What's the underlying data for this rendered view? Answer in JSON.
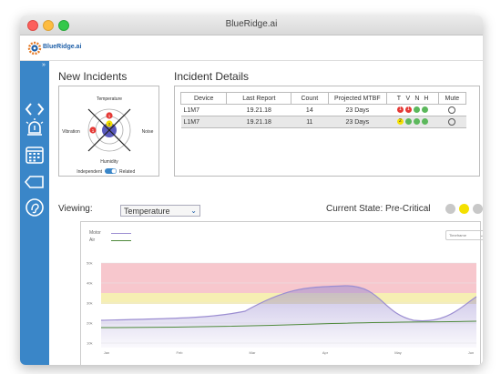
{
  "window": {
    "title": "BlueRidge.ai"
  },
  "brand": {
    "name": "BlueRidge.ai"
  },
  "new_incidents": {
    "title": "New Incidents",
    "radar_labels": {
      "top": "Temperature",
      "left": "Vibration",
      "right": "Noise",
      "bottom": "Humidity"
    },
    "badges": [
      {
        "value": "1",
        "color": "#e53935"
      },
      {
        "value": "2",
        "color": "#f4e000"
      },
      {
        "value": "1",
        "color": "#e53935"
      }
    ],
    "toggle": {
      "left_label": "Independent",
      "right_label": "Related",
      "on": true
    }
  },
  "incident_details": {
    "title": "Incident Details",
    "columns": [
      "Device",
      "Last Report",
      "Count",
      "Projected MTBF",
      "T",
      "V",
      "N",
      "H",
      "Mute"
    ],
    "rows": [
      {
        "device": "L1M7",
        "last_report": "19.21.18",
        "count": "14",
        "mtbf": "23 Days",
        "indicators": [
          {
            "color": "#e53935",
            "label": "1"
          },
          {
            "color": "#e53935",
            "label": "1"
          },
          {
            "color": "#5cb85c",
            "label": ""
          },
          {
            "color": "#5cb85c",
            "label": ""
          }
        ]
      },
      {
        "device": "L1M7",
        "last_report": "19.21.18",
        "count": "11",
        "mtbf": "23 Days",
        "indicators": [
          {
            "color": "#f4e000",
            "label": "2"
          },
          {
            "color": "#5cb85c",
            "label": ""
          },
          {
            "color": "#5cb85c",
            "label": ""
          },
          {
            "color": "#5cb85c",
            "label": ""
          }
        ]
      }
    ]
  },
  "viewing": {
    "label": "Viewing:",
    "selected": "Temperature"
  },
  "current_state": {
    "label": "Current State: Pre-Critical",
    "lights": [
      "#c8c8c8",
      "#f4e000",
      "#c8c8c8"
    ]
  },
  "timeframe": {
    "label": "Timeframe"
  },
  "colors": {
    "sidebar": "#3a86c8",
    "motor": "#9b8dd1",
    "air": "#4f8a3c",
    "critical_band": "#f7c7cd",
    "warning_band": "#f6efb3"
  },
  "chart_data": {
    "type": "area",
    "series": [
      {
        "name": "Motor",
        "color": "#9b8dd1"
      },
      {
        "name": "Air",
        "color": "#4f8a3c"
      }
    ],
    "x_labels": [
      "Jan",
      "Feb",
      "Mar",
      "Apr",
      "May",
      "Jun"
    ],
    "y_labels": [
      "10k",
      "20k",
      "30k",
      "40k",
      "50k"
    ]
  }
}
